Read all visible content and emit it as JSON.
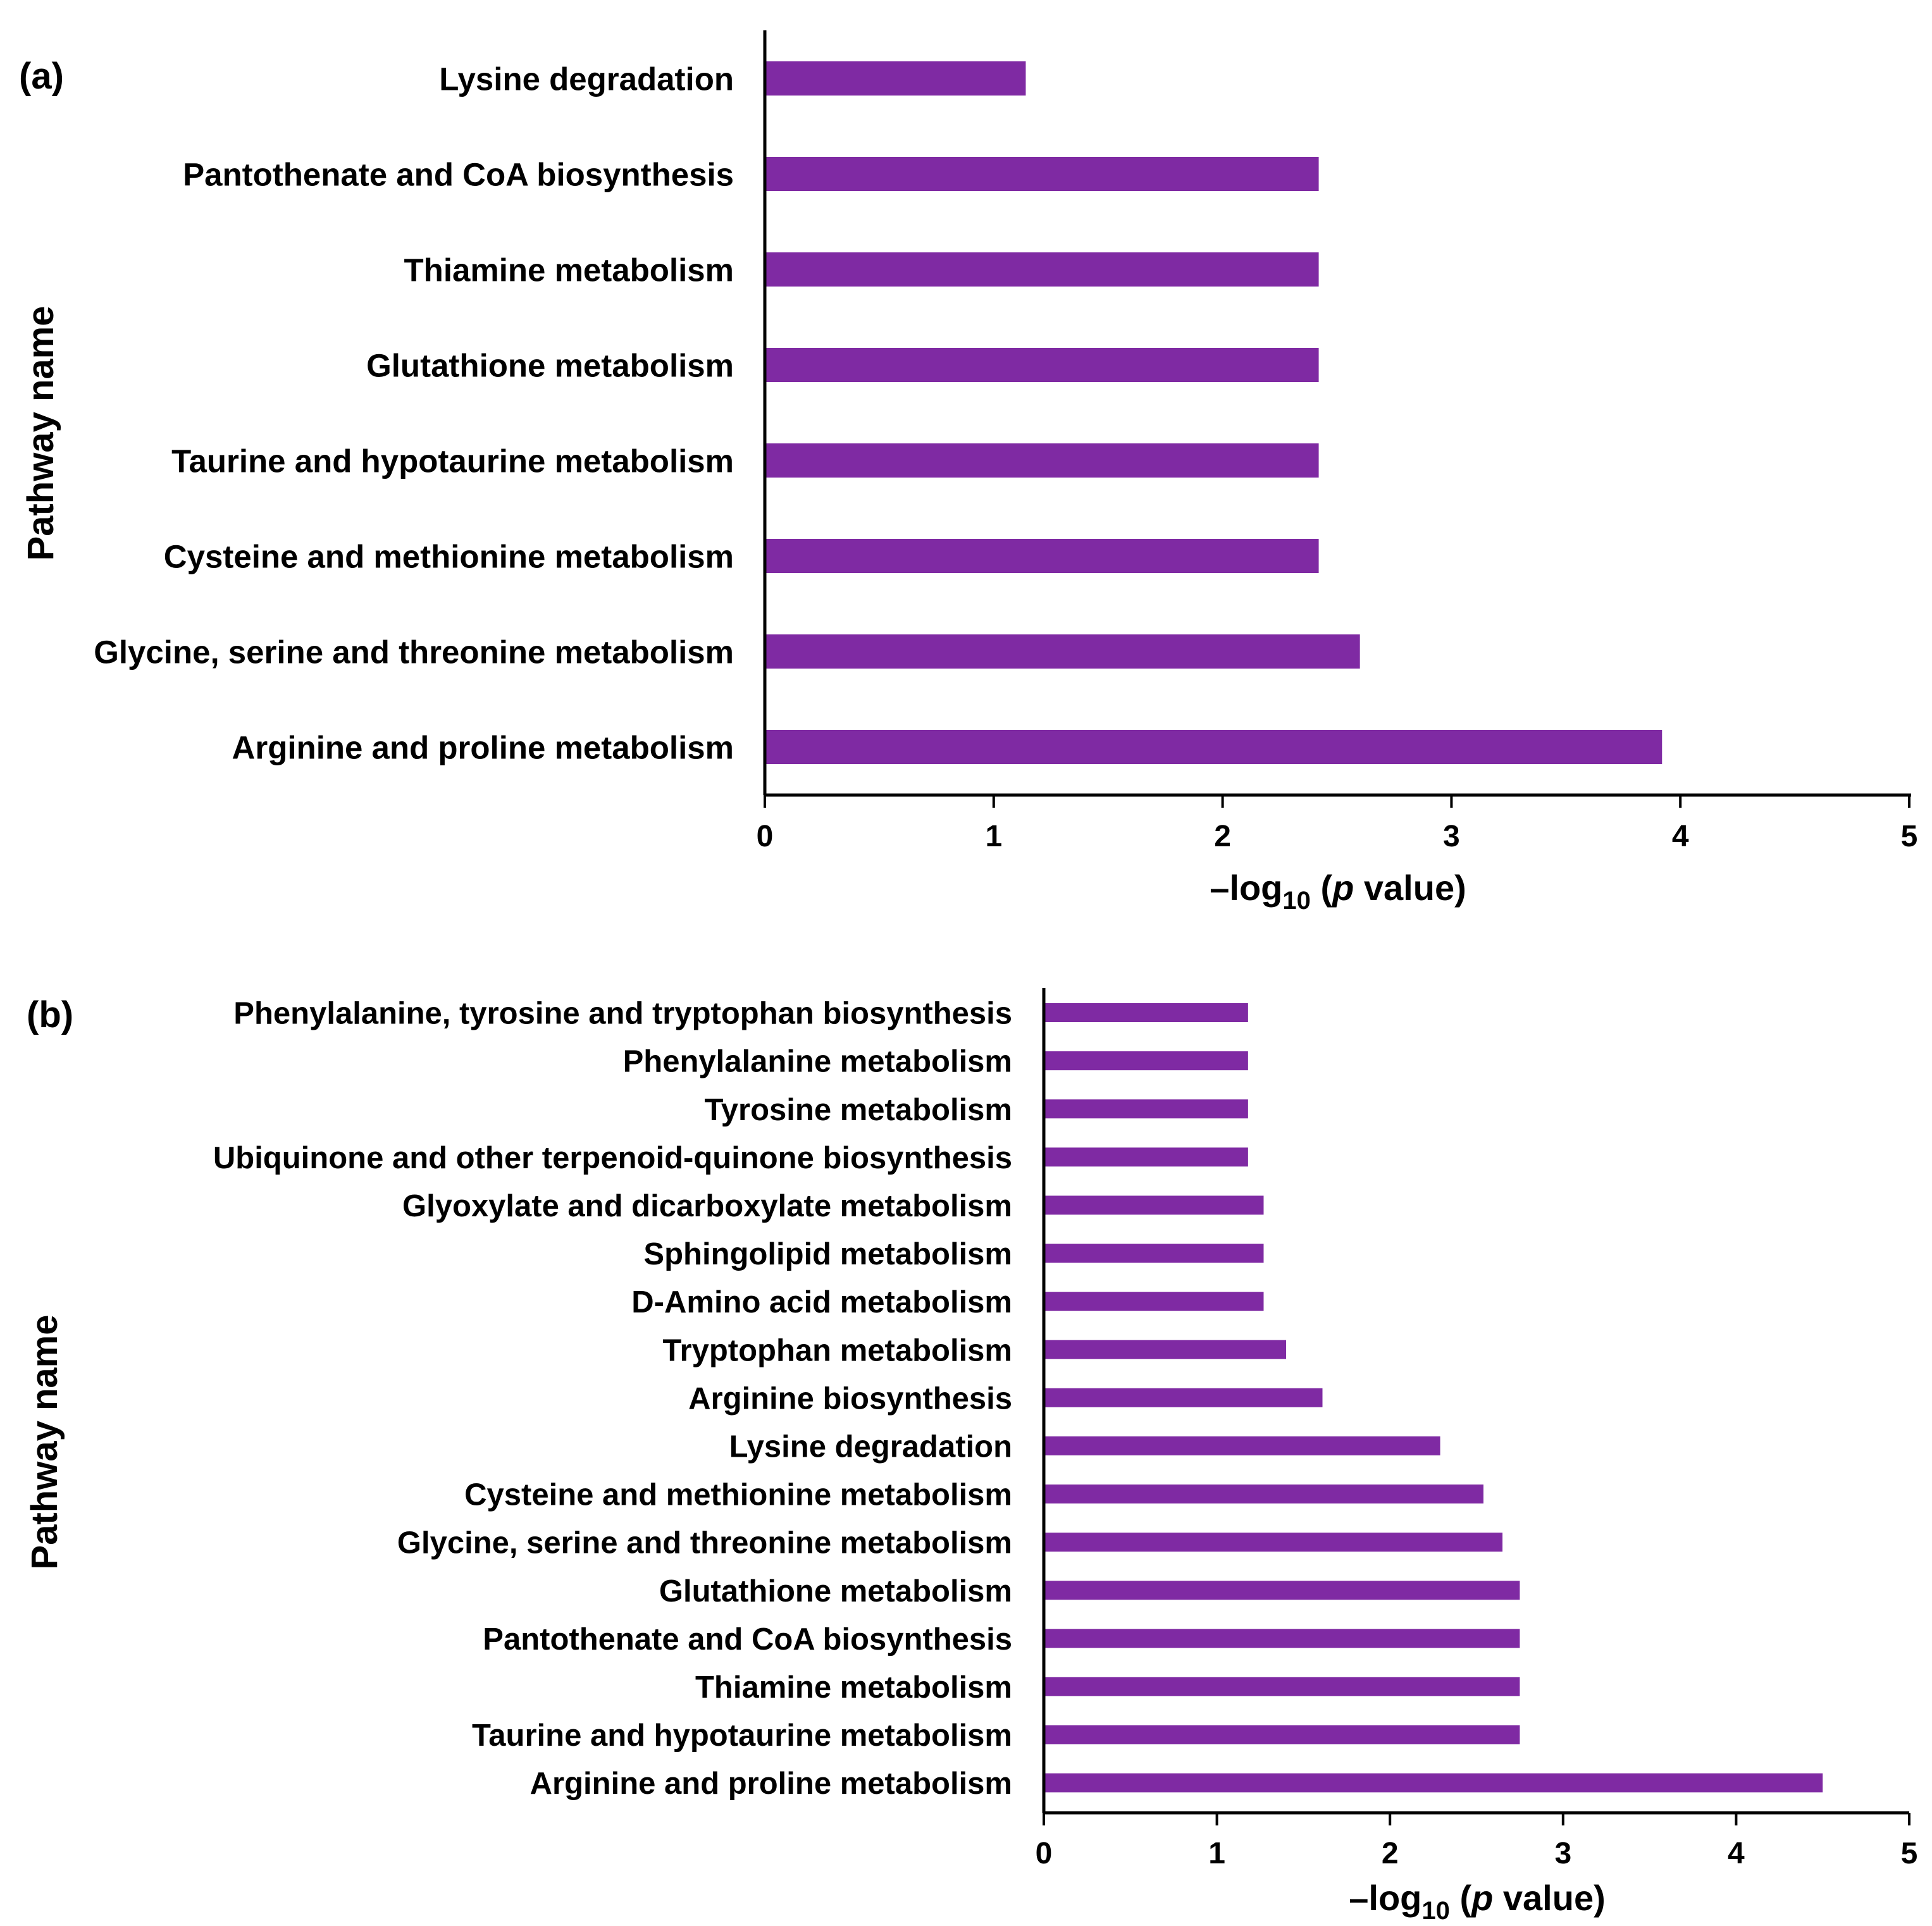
{
  "colors": {
    "bar": "#7f2aa3",
    "axis": "#000000"
  },
  "chart_data": [
    {
      "panel_label": "(a)",
      "type": "bar",
      "orientation": "horizontal",
      "categories": [
        "Lysine degradation",
        "Pantothenate and CoA biosynthesis",
        "Thiamine metabolism",
        "Glutathione metabolism",
        "Taurine and hypotaurine metabolism",
        "Cysteine and methionine metabolism",
        "Glycine, serine and threonine metabolism",
        "Arginine and proline metabolism"
      ],
      "values": [
        1.14,
        2.42,
        2.42,
        2.42,
        2.42,
        2.42,
        2.6,
        3.92
      ],
      "xlabel": {
        "prefix": "–log",
        "sub": "10",
        "open": " (",
        "italic": "p",
        "suffix": " value)"
      },
      "ylabel": "Pathway name",
      "xlim": [
        0,
        5
      ],
      "xticks": [
        "0",
        "1",
        "2",
        "3",
        "4",
        "5"
      ],
      "grid": false
    },
    {
      "panel_label": "(b)",
      "type": "bar",
      "orientation": "horizontal",
      "categories": [
        "Phenylalanine, tyrosine and tryptophan biosynthesis",
        "Phenylalanine metabolism",
        "Tyrosine metabolism",
        "Ubiquinone and other terpenoid-quinone biosynthesis",
        "Glyoxylate and dicarboxylate metabolism",
        "Sphingolipid metabolism",
        "D-Amino acid metabolism",
        "Tryptophan metabolism",
        "Arginine biosynthesis",
        "Lysine degradation",
        "Cysteine and methionine metabolism",
        "Glycine, serine and threonine metabolism",
        "Glutathione metabolism",
        "Pantothenate and CoA biosynthesis",
        "Thiamine metabolism",
        "Taurine and hypotaurine metabolism",
        "Arginine and proline metabolism"
      ],
      "values": [
        1.18,
        1.18,
        1.18,
        1.18,
        1.27,
        1.27,
        1.27,
        1.4,
        1.61,
        2.29,
        2.54,
        2.65,
        2.75,
        2.75,
        2.75,
        2.75,
        4.5
      ],
      "xlabel": {
        "prefix": "–log",
        "sub": "10",
        "open": " (",
        "italic": "p",
        "suffix": " value)"
      },
      "ylabel": "Pathway name",
      "xlim": [
        0,
        5
      ],
      "xticks": [
        "0",
        "1",
        "2",
        "3",
        "4",
        "5"
      ],
      "grid": false
    }
  ]
}
